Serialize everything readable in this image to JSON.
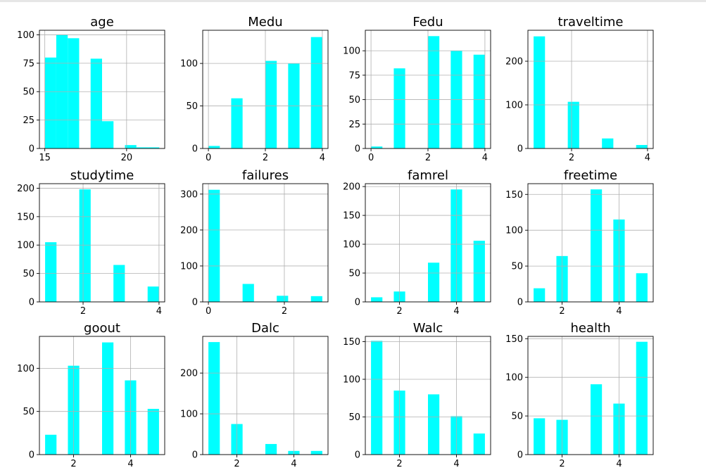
{
  "style": {
    "bar_color": "#00ffff",
    "grid_color": "#b0b0b0",
    "axis_color": "#000000"
  },
  "chart_data": [
    {
      "type": "bar",
      "title": "age",
      "grid": true,
      "xlim": [
        14.67,
        22.33
      ],
      "ylim": [
        0,
        104
      ],
      "xticks": [
        {
          "v": 15,
          "t": "15"
        },
        {
          "v": 20,
          "t": "20"
        }
      ],
      "yticks": [
        {
          "v": 0,
          "t": "0"
        },
        {
          "v": 25,
          "t": "25"
        },
        {
          "v": 50,
          "t": "50"
        },
        {
          "v": 75,
          "t": "75"
        },
        {
          "v": 100,
          "t": "100"
        }
      ],
      "bars": [
        {
          "x0": 15.0,
          "x1": 15.7,
          "v": 80
        },
        {
          "x0": 15.7,
          "x1": 16.4,
          "v": 100
        },
        {
          "x0": 16.4,
          "x1": 17.1,
          "v": 97
        },
        {
          "x0": 17.8,
          "x1": 18.5,
          "v": 79
        },
        {
          "x0": 18.5,
          "x1": 19.2,
          "v": 24
        },
        {
          "x0": 19.9,
          "x1": 20.6,
          "v": 3
        },
        {
          "x0": 20.6,
          "x1": 21.3,
          "v": 1
        },
        {
          "x0": 21.3,
          "x1": 22.0,
          "v": 1
        }
      ]
    },
    {
      "type": "bar",
      "title": "Medu",
      "grid": true,
      "xlim": [
        -0.2,
        4.2
      ],
      "ylim": [
        0,
        139
      ],
      "xticks": [
        {
          "v": 0,
          "t": "0"
        },
        {
          "v": 2,
          "t": "2"
        },
        {
          "v": 4,
          "t": "4"
        }
      ],
      "yticks": [
        {
          "v": 0,
          "t": "0"
        },
        {
          "v": 50,
          "t": "50"
        },
        {
          "v": 100,
          "t": "100"
        }
      ],
      "bars": [
        {
          "x0": 0.0,
          "x1": 0.4,
          "v": 3
        },
        {
          "x0": 0.8,
          "x1": 1.2,
          "v": 59
        },
        {
          "x0": 2.0,
          "x1": 2.4,
          "v": 103
        },
        {
          "x0": 2.8,
          "x1": 3.2,
          "v": 100
        },
        {
          "x0": 3.6,
          "x1": 4.0,
          "v": 131
        }
      ]
    },
    {
      "type": "bar",
      "title": "Fedu",
      "grid": true,
      "xlim": [
        -0.2,
        4.2
      ],
      "ylim": [
        0,
        121
      ],
      "xticks": [
        {
          "v": 0,
          "t": "0"
        },
        {
          "v": 2,
          "t": "2"
        },
        {
          "v": 4,
          "t": "4"
        }
      ],
      "yticks": [
        {
          "v": 0,
          "t": "0"
        },
        {
          "v": 25,
          "t": "25"
        },
        {
          "v": 50,
          "t": "50"
        },
        {
          "v": 75,
          "t": "75"
        },
        {
          "v": 100,
          "t": "100"
        }
      ],
      "bars": [
        {
          "x0": 0.0,
          "x1": 0.4,
          "v": 2
        },
        {
          "x0": 0.8,
          "x1": 1.2,
          "v": 82
        },
        {
          "x0": 2.0,
          "x1": 2.4,
          "v": 115
        },
        {
          "x0": 2.8,
          "x1": 3.2,
          "v": 100
        },
        {
          "x0": 3.6,
          "x1": 4.0,
          "v": 96
        }
      ]
    },
    {
      "type": "bar",
      "title": "traveltime",
      "grid": true,
      "xlim": [
        0.85,
        4.15
      ],
      "ylim": [
        0,
        271
      ],
      "xticks": [
        {
          "v": 2,
          "t": "2"
        },
        {
          "v": 4,
          "t": "4"
        }
      ],
      "yticks": [
        {
          "v": 0,
          "t": "0"
        },
        {
          "v": 100,
          "t": "100"
        },
        {
          "v": 200,
          "t": "200"
        }
      ],
      "bars": [
        {
          "x0": 1.0,
          "x1": 1.3,
          "v": 257
        },
        {
          "x0": 1.9,
          "x1": 2.2,
          "v": 107
        },
        {
          "x0": 2.8,
          "x1": 3.1,
          "v": 23
        },
        {
          "x0": 3.7,
          "x1": 4.0,
          "v": 8
        }
      ]
    },
    {
      "type": "bar",
      "title": "studytime",
      "grid": true,
      "xlim": [
        0.85,
        4.15
      ],
      "ylim": [
        0,
        208
      ],
      "xticks": [
        {
          "v": 2,
          "t": "2"
        },
        {
          "v": 4,
          "t": "4"
        }
      ],
      "yticks": [
        {
          "v": 0,
          "t": "0"
        },
        {
          "v": 50,
          "t": "50"
        },
        {
          "v": 100,
          "t": "100"
        },
        {
          "v": 150,
          "t": "150"
        },
        {
          "v": 200,
          "t": "200"
        }
      ],
      "bars": [
        {
          "x0": 1.0,
          "x1": 1.3,
          "v": 105
        },
        {
          "x0": 1.9,
          "x1": 2.2,
          "v": 198
        },
        {
          "x0": 2.8,
          "x1": 3.1,
          "v": 65
        },
        {
          "x0": 3.7,
          "x1": 4.0,
          "v": 27
        }
      ]
    },
    {
      "type": "bar",
      "title": "failures",
      "grid": true,
      "xlim": [
        -0.15,
        3.15
      ],
      "ylim": [
        0,
        329
      ],
      "xticks": [
        {
          "v": 0,
          "t": "0"
        },
        {
          "v": 2,
          "t": "2"
        }
      ],
      "yticks": [
        {
          "v": 0,
          "t": "0"
        },
        {
          "v": 100,
          "t": "100"
        },
        {
          "v": 200,
          "t": "200"
        },
        {
          "v": 300,
          "t": "300"
        }
      ],
      "bars": [
        {
          "x0": 0.0,
          "x1": 0.3,
          "v": 312
        },
        {
          "x0": 0.9,
          "x1": 1.2,
          "v": 50
        },
        {
          "x0": 1.8,
          "x1": 2.1,
          "v": 17
        },
        {
          "x0": 2.7,
          "x1": 3.0,
          "v": 16
        }
      ]
    },
    {
      "type": "bar",
      "title": "famrel",
      "grid": true,
      "xlim": [
        0.8,
        5.2
      ],
      "ylim": [
        0,
        205
      ],
      "xticks": [
        {
          "v": 2,
          "t": "2"
        },
        {
          "v": 4,
          "t": "4"
        }
      ],
      "yticks": [
        {
          "v": 0,
          "t": "0"
        },
        {
          "v": 50,
          "t": "50"
        },
        {
          "v": 100,
          "t": "100"
        },
        {
          "v": 150,
          "t": "150"
        },
        {
          "v": 200,
          "t": "200"
        }
      ],
      "bars": [
        {
          "x0": 1.0,
          "x1": 1.4,
          "v": 8
        },
        {
          "x0": 1.8,
          "x1": 2.2,
          "v": 18
        },
        {
          "x0": 3.0,
          "x1": 3.4,
          "v": 68
        },
        {
          "x0": 3.8,
          "x1": 4.2,
          "v": 195
        },
        {
          "x0": 4.6,
          "x1": 5.0,
          "v": 106
        }
      ]
    },
    {
      "type": "bar",
      "title": "freetime",
      "grid": true,
      "xlim": [
        0.8,
        5.2
      ],
      "ylim": [
        0,
        165
      ],
      "xticks": [
        {
          "v": 2,
          "t": "2"
        },
        {
          "v": 4,
          "t": "4"
        }
      ],
      "yticks": [
        {
          "v": 0,
          "t": "0"
        },
        {
          "v": 50,
          "t": "50"
        },
        {
          "v": 100,
          "t": "100"
        },
        {
          "v": 150,
          "t": "150"
        }
      ],
      "bars": [
        {
          "x0": 1.0,
          "x1": 1.4,
          "v": 19
        },
        {
          "x0": 1.8,
          "x1": 2.2,
          "v": 64
        },
        {
          "x0": 3.0,
          "x1": 3.4,
          "v": 157
        },
        {
          "x0": 3.8,
          "x1": 4.2,
          "v": 115
        },
        {
          "x0": 4.6,
          "x1": 5.0,
          "v": 40
        }
      ]
    },
    {
      "type": "bar",
      "title": "goout",
      "grid": true,
      "xlim": [
        0.8,
        5.2
      ],
      "ylim": [
        0,
        137
      ],
      "xticks": [
        {
          "v": 2,
          "t": "2"
        },
        {
          "v": 4,
          "t": "4"
        }
      ],
      "yticks": [
        {
          "v": 0,
          "t": "0"
        },
        {
          "v": 50,
          "t": "50"
        },
        {
          "v": 100,
          "t": "100"
        }
      ],
      "bars": [
        {
          "x0": 1.0,
          "x1": 1.4,
          "v": 23
        },
        {
          "x0": 1.8,
          "x1": 2.2,
          "v": 103
        },
        {
          "x0": 3.0,
          "x1": 3.4,
          "v": 130
        },
        {
          "x0": 3.8,
          "x1": 4.2,
          "v": 86
        },
        {
          "x0": 4.6,
          "x1": 5.0,
          "v": 53
        }
      ]
    },
    {
      "type": "bar",
      "title": "Dalc",
      "grid": true,
      "xlim": [
        0.8,
        5.2
      ],
      "ylim": [
        0,
        290
      ],
      "xticks": [
        {
          "v": 2,
          "t": "2"
        },
        {
          "v": 4,
          "t": "4"
        }
      ],
      "yticks": [
        {
          "v": 0,
          "t": "0"
        },
        {
          "v": 100,
          "t": "100"
        },
        {
          "v": 200,
          "t": "200"
        }
      ],
      "bars": [
        {
          "x0": 1.0,
          "x1": 1.4,
          "v": 276
        },
        {
          "x0": 1.8,
          "x1": 2.2,
          "v": 75
        },
        {
          "x0": 3.0,
          "x1": 3.4,
          "v": 26
        },
        {
          "x0": 3.8,
          "x1": 4.2,
          "v": 9
        },
        {
          "x0": 4.6,
          "x1": 5.0,
          "v": 9
        }
      ]
    },
    {
      "type": "bar",
      "title": "Walc",
      "grid": true,
      "xlim": [
        0.8,
        5.2
      ],
      "ylim": [
        0,
        157
      ],
      "xticks": [
        {
          "v": 2,
          "t": "2"
        },
        {
          "v": 4,
          "t": "4"
        }
      ],
      "yticks": [
        {
          "v": 0,
          "t": "0"
        },
        {
          "v": 50,
          "t": "50"
        },
        {
          "v": 100,
          "t": "100"
        },
        {
          "v": 150,
          "t": "150"
        }
      ],
      "bars": [
        {
          "x0": 1.0,
          "x1": 1.4,
          "v": 151
        },
        {
          "x0": 1.8,
          "x1": 2.2,
          "v": 85
        },
        {
          "x0": 3.0,
          "x1": 3.4,
          "v": 80
        },
        {
          "x0": 3.8,
          "x1": 4.2,
          "v": 51
        },
        {
          "x0": 4.6,
          "x1": 5.0,
          "v": 28
        }
      ]
    },
    {
      "type": "bar",
      "title": "health",
      "grid": true,
      "xlim": [
        0.8,
        5.2
      ],
      "ylim": [
        0,
        153
      ],
      "xticks": [
        {
          "v": 2,
          "t": "2"
        },
        {
          "v": 4,
          "t": "4"
        }
      ],
      "yticks": [
        {
          "v": 0,
          "t": "0"
        },
        {
          "v": 50,
          "t": "50"
        },
        {
          "v": 100,
          "t": "100"
        },
        {
          "v": 150,
          "t": "150"
        }
      ],
      "bars": [
        {
          "x0": 1.0,
          "x1": 1.4,
          "v": 47
        },
        {
          "x0": 1.8,
          "x1": 2.2,
          "v": 45
        },
        {
          "x0": 3.0,
          "x1": 3.4,
          "v": 91
        },
        {
          "x0": 3.8,
          "x1": 4.2,
          "v": 66
        },
        {
          "x0": 4.6,
          "x1": 5.0,
          "v": 146
        }
      ]
    }
  ]
}
